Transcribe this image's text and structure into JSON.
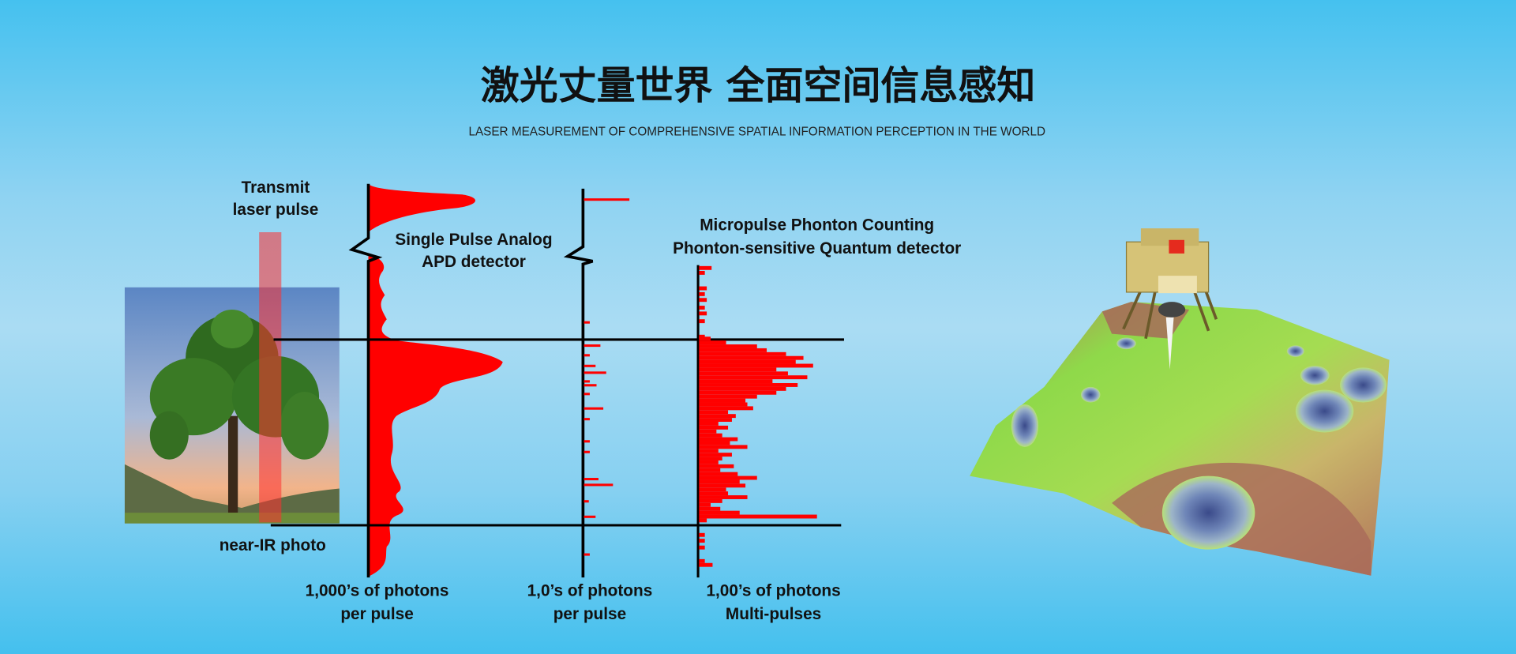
{
  "header": {
    "title": "激光丈量世界 全面空间信息感知",
    "subtitle": "LASER MEASUREMENT OF COMPREHENSIVE SPATIAL INFORMATION PERCEPTION IN THE WORLD"
  },
  "diagram": {
    "transmit_label": [
      "Transmit",
      "laser pulse"
    ],
    "photo_label": "near-IR photo",
    "analog_label": [
      "Single Pulse Analog",
      "APD detector"
    ],
    "micropulse_label": [
      "Micropulse Phonton Counting",
      "Phonton-sensitive Quantum detector"
    ],
    "axis_labels": [
      [
        "1,000’s of photons",
        "per pulse"
      ],
      [
        "1,0’s of photons",
        "per pulse"
      ],
      [
        "1,00’s of photons",
        "Multi-pulses"
      ]
    ]
  },
  "colors": {
    "signal": "#ff0000",
    "background": "#6fcbf1",
    "title": "#111111"
  },
  "illustration": {
    "subject": "lunar-lander-over-terrain-elevation-map"
  }
}
